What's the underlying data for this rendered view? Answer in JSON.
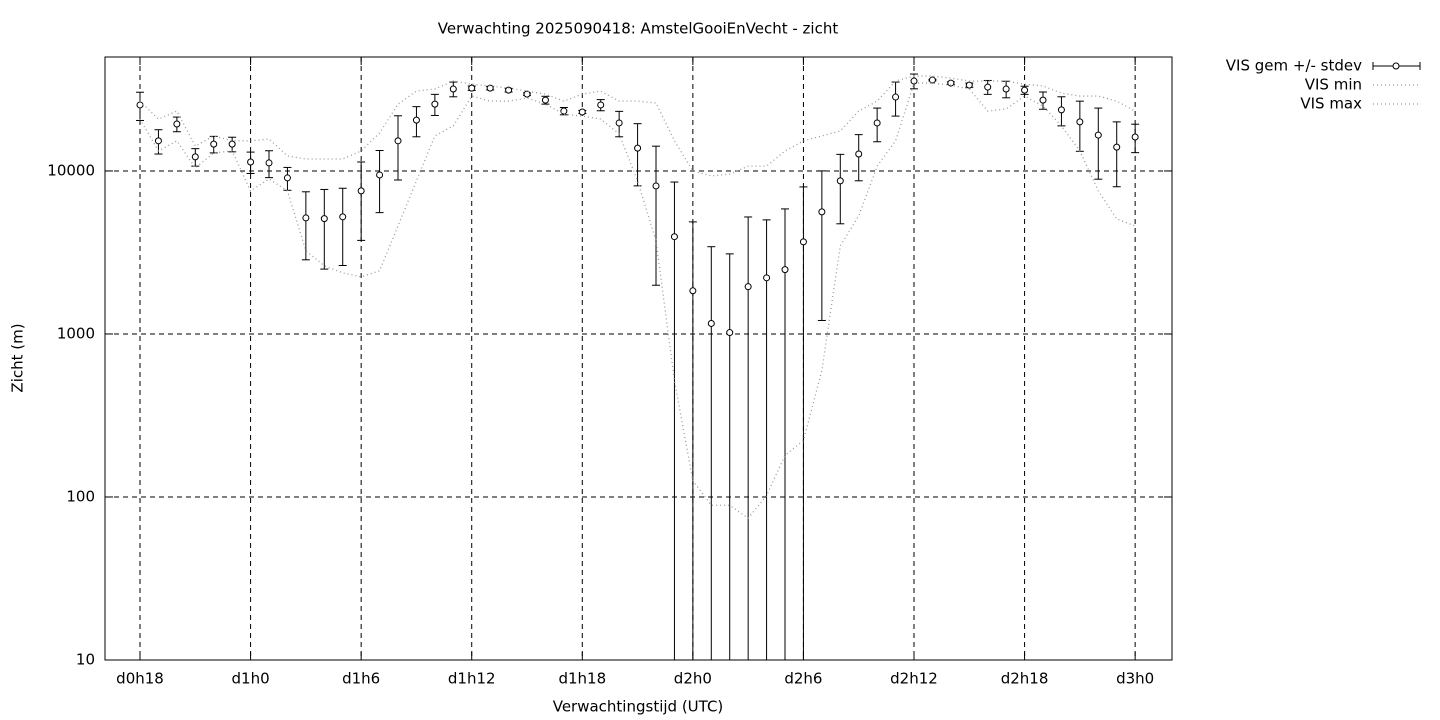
{
  "chart_data": {
    "type": "errorbar",
    "title": "Verwachting 2025090418: AmstelGooiEnVecht - zicht",
    "x_label": "Verwachtingstijd (UTC)",
    "y_label": "Zicht (m)",
    "x": [
      18,
      19,
      20,
      21,
      22,
      23,
      24,
      25,
      26,
      27,
      28,
      29,
      30,
      31,
      32,
      33,
      34,
      35,
      36,
      37,
      38,
      39,
      40,
      41,
      42,
      43,
      44,
      45,
      46,
      47,
      48,
      49,
      50,
      51,
      52,
      53,
      54,
      55,
      56,
      57,
      58,
      59,
      60,
      61,
      62,
      63,
      64,
      65,
      66,
      67,
      68,
      69,
      70,
      71,
      72
    ],
    "series": [
      {
        "name": "VIS gem +/- stdev",
        "style": "errorbar",
        "color": "#000000",
        "values": [
          25400,
          15300,
          19400,
          12200,
          14600,
          14600,
          11350,
          11200,
          9060,
          5150,
          5100,
          5230,
          7550,
          9450,
          15300,
          20500,
          25700,
          31800,
          32200,
          32200,
          31300,
          29600,
          27200,
          23300,
          23000,
          25400,
          19700,
          13800,
          8090,
          3950,
          1840,
          1160,
          1020,
          1950,
          2210,
          2480,
          3670,
          5610,
          8690,
          12700,
          19700,
          28400,
          35600,
          36100,
          34600,
          33600,
          32700,
          31800,
          31300,
          27200,
          23700,
          20000,
          16600,
          14000,
          16150
        ],
        "errors": [
          5000,
          2600,
          2000,
          1500,
          1700,
          1500,
          1700,
          2100,
          1450,
          2300,
          2600,
          2600,
          3800,
          3900,
          6500,
          4300,
          3800,
          3300,
          1000,
          800,
          800,
          500,
          1500,
          1200,
          500,
          2000,
          3500,
          5700,
          6100,
          4600,
          3030,
          2270,
          2080,
          3270,
          2800,
          3370,
          4310,
          4400,
          3950,
          4000,
          4600,
          6700,
          3700,
          400,
          600,
          1000,
          3200,
          3700,
          1800,
          3300,
          4800,
          6800,
          7700,
          6000,
          3200
        ]
      },
      {
        "name": "VIS min",
        "style": "dotted",
        "color": "#999999",
        "values": [
          20800,
          13260,
          15300,
          10430,
          12900,
          13260,
          7540,
          8930,
          7540,
          3240,
          2620,
          2370,
          2240,
          2440,
          4600,
          8690,
          16400,
          18900,
          28800,
          26800,
          26800,
          28000,
          25700,
          22300,
          21700,
          20800,
          16850,
          8690,
          3730,
          518,
          126,
          89,
          89,
          74,
          102,
          180,
          222,
          596,
          3470,
          5300,
          10700,
          15300,
          34600,
          34600,
          33600,
          31800,
          23300,
          24000,
          28800,
          25000,
          18900,
          13260,
          7540,
          5080,
          4600
        ]
      },
      {
        "name": "VIS max",
        "style": "dotted",
        "color": "#999999",
        "values": [
          26800,
          20800,
          23300,
          14200,
          16400,
          15300,
          15300,
          15700,
          12360,
          11840,
          11840,
          11840,
          13260,
          17100,
          25700,
          30900,
          31800,
          35600,
          34100,
          33200,
          32200,
          30900,
          29600,
          26800,
          29600,
          30900,
          26800,
          26800,
          26100,
          15300,
          10000,
          9320,
          9550,
          10700,
          10700,
          13260,
          15300,
          16400,
          17600,
          23300,
          26800,
          35600,
          38200,
          38200,
          37100,
          35600,
          35600,
          35600,
          34100,
          33200,
          30000,
          28800,
          28800,
          26800,
          23300
        ]
      }
    ],
    "xlim": [
      16.1,
      74
    ],
    "xticks": [
      {
        "value": 18,
        "label": "d0h18"
      },
      {
        "value": 24,
        "label": "d1h0"
      },
      {
        "value": 30,
        "label": "d1h6"
      },
      {
        "value": 36,
        "label": "d1h12"
      },
      {
        "value": 42,
        "label": "d1h18"
      },
      {
        "value": 48,
        "label": "d2h0"
      },
      {
        "value": 54,
        "label": "d2h6"
      },
      {
        "value": 60,
        "label": "d2h12"
      },
      {
        "value": 66,
        "label": "d2h18"
      },
      {
        "value": 72,
        "label": "d3h0"
      }
    ],
    "ylim": [
      10,
      50000
    ],
    "yticks": [
      10,
      100,
      1000,
      10000
    ],
    "ylog": true,
    "grid": true,
    "legend": "outside-right"
  }
}
